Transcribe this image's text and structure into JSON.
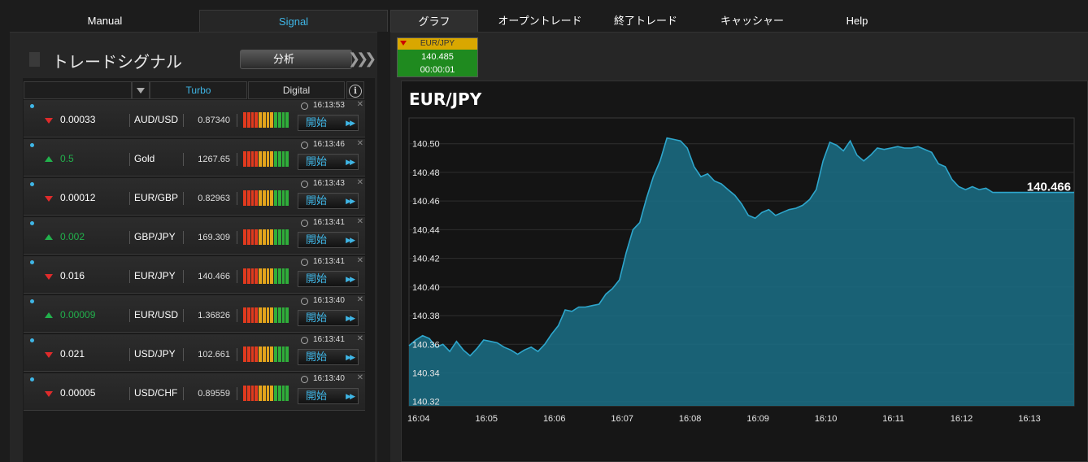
{
  "top_tabs": {
    "manual": "Manual",
    "signal": "Signal",
    "graph": "グラフ",
    "open_trade": "オープントレード",
    "closed_trade": "終了トレード",
    "cashier": "キャッシャー",
    "help": "Help"
  },
  "signal_panel": {
    "title": "トレードシグナル",
    "analyze_label": "分析",
    "columns": {
      "turbo": "Turbo",
      "digital": "Digital",
      "info_icon": "i"
    },
    "start_label": "開始",
    "rows": [
      {
        "direction": "down",
        "value": "0.00033",
        "pair": "AUD/USD",
        "rate": "0.87340",
        "time": "16:13:53"
      },
      {
        "direction": "up",
        "value": "0.5",
        "pair": "Gold",
        "rate": "1267.65",
        "time": "16:13:46"
      },
      {
        "direction": "down",
        "value": "0.00012",
        "pair": "EUR/GBP",
        "rate": "0.82963",
        "time": "16:13:43"
      },
      {
        "direction": "up",
        "value": "0.002",
        "pair": "GBP/JPY",
        "rate": "169.309",
        "time": "16:13:41"
      },
      {
        "direction": "down",
        "value": "0.016",
        "pair": "EUR/JPY",
        "rate": "140.466",
        "time": "16:13:41"
      },
      {
        "direction": "up",
        "value": "0.00009",
        "pair": "EUR/USD",
        "rate": "1.36826",
        "time": "16:13:40"
      },
      {
        "direction": "down",
        "value": "0.021",
        "pair": "USD/JPY",
        "rate": "102.661",
        "time": "16:13:41"
      },
      {
        "direction": "down",
        "value": "0.00005",
        "pair": "USD/CHF",
        "rate": "0.89559",
        "time": "16:13:40"
      }
    ],
    "meter_colors": [
      "#e23a1e",
      "#e23a1e",
      "#e23a1e",
      "#e23a1e",
      "#e3a41c",
      "#e3a41c",
      "#e3a41c",
      "#e3a41c",
      "#2fae3a",
      "#2fae3a",
      "#2fae3a",
      "#2fae3a"
    ]
  },
  "ticker": {
    "pair": "EUR/JPY",
    "rate": "140.485",
    "countdown": "00:00:01"
  },
  "chart_data": {
    "type": "area",
    "title": "EUR/JPY",
    "current_value_label": "140.466",
    "x_ticks": [
      "16:04",
      "16:05",
      "16:06",
      "16:07",
      "16:08",
      "16:09",
      "16:10",
      "16:11",
      "16:12",
      "16:13"
    ],
    "y_ticks": [
      "140.50",
      "140.48",
      "140.46",
      "140.44",
      "140.42",
      "140.40",
      "140.38",
      "140.36",
      "140.34",
      "140.32"
    ],
    "ylim": [
      140.317,
      140.518
    ],
    "color": "#2ea6cc",
    "x": [
      0,
      0.1,
      0.2,
      0.3,
      0.4,
      0.5,
      0.6,
      0.7,
      0.8,
      0.9,
      1.0,
      1.1,
      1.2,
      1.3,
      1.4,
      1.5,
      1.6,
      1.7,
      1.8,
      1.9,
      2.0,
      2.1,
      2.2,
      2.3,
      2.4,
      2.5,
      2.6,
      2.7,
      2.8,
      2.9,
      3.0,
      3.1,
      3.2,
      3.3,
      3.4,
      3.5,
      3.6,
      3.7,
      3.8,
      3.9,
      4.0,
      4.1,
      4.2,
      4.3,
      4.4,
      4.5,
      4.6,
      4.7,
      4.8,
      4.9,
      5.0,
      5.1,
      5.2,
      5.3,
      5.4,
      5.5,
      5.6,
      5.7,
      5.8,
      5.9,
      6.0,
      6.1,
      6.2,
      6.3,
      6.4,
      6.5,
      6.6,
      6.7,
      6.8,
      6.9,
      7.0,
      7.1,
      7.2,
      7.3,
      7.4,
      7.5,
      7.6,
      7.7,
      7.8,
      7.9,
      8.0,
      8.1,
      8.2,
      8.3,
      8.4,
      8.5,
      8.6,
      8.7,
      8.8,
      8.9,
      9.0,
      9.1,
      9.2,
      9.3,
      9.4,
      9.5,
      9.6,
      9.7,
      9.8
    ],
    "values": [
      140.359,
      140.363,
      140.366,
      140.364,
      140.358,
      140.36,
      140.355,
      140.362,
      140.356,
      140.352,
      140.357,
      140.363,
      140.362,
      140.361,
      140.358,
      140.356,
      140.353,
      140.356,
      140.358,
      140.355,
      140.36,
      140.367,
      140.373,
      140.384,
      140.383,
      140.386,
      140.386,
      140.387,
      140.388,
      140.395,
      140.399,
      140.405,
      140.424,
      140.44,
      140.445,
      140.462,
      140.477,
      140.488,
      140.504,
      140.503,
      140.502,
      140.497,
      140.484,
      140.477,
      140.479,
      140.474,
      140.472,
      140.468,
      140.464,
      140.458,
      140.45,
      140.448,
      140.452,
      140.454,
      140.45,
      140.452,
      140.454,
      140.455,
      140.457,
      140.461,
      140.468,
      140.488,
      140.501,
      140.499,
      140.495,
      140.502,
      140.492,
      140.488,
      140.492,
      140.497,
      140.496,
      140.497,
      140.498,
      140.497,
      140.497,
      140.498,
      140.496,
      140.494,
      140.486,
      140.484,
      140.475,
      140.47,
      140.468,
      140.47,
      140.468,
      140.469,
      140.466,
      140.466,
      140.466,
      140.466,
      140.466,
      140.466,
      140.466,
      140.466,
      140.466,
      140.466,
      140.466,
      140.466,
      140.466
    ]
  }
}
